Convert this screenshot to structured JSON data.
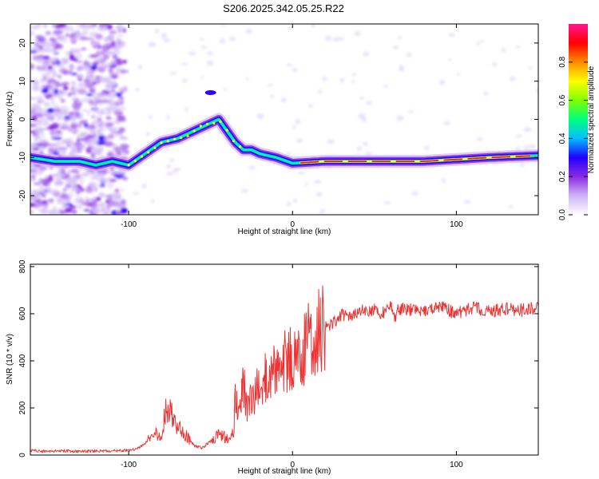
{
  "figure_title": "S206.2025.342.05.25.R22",
  "chart_data": [
    {
      "type": "heatmap",
      "title": "S206.2025.342.05.25.R22",
      "xlabel": "Height of straight line (km)",
      "ylabel": "Frequency (Hz)",
      "xlim": [
        -160,
        150
      ],
      "ylim": [
        -25,
        25
      ],
      "x_ticks": [
        -100,
        0,
        100
      ],
      "x_tick_labels": [
        "-100",
        "0",
        "100"
      ],
      "y_ticks": [
        -20,
        -10,
        0,
        10,
        20
      ],
      "y_tick_labels": [
        "-20",
        "-10",
        "0",
        "10",
        "20"
      ],
      "ridge": {
        "x": [
          -160,
          -145,
          -130,
          -120,
          -110,
          -100,
          -90,
          -80,
          -70,
          -60,
          -50,
          -45,
          -40,
          -35,
          -30,
          -25,
          -20,
          -10,
          0,
          20,
          50,
          80,
          100,
          120,
          150
        ],
        "y": [
          -10,
          -11,
          -11,
          -12,
          -11,
          -12,
          -9,
          -6,
          -5,
          -3,
          -1,
          0,
          -3,
          -6,
          -8,
          -8,
          -9,
          -10,
          -11.5,
          -11,
          -11,
          -11,
          -10.5,
          -10,
          -9.5
        ]
      },
      "colorbar": {
        "label": "Normalized spectral amplitude",
        "range": [
          0,
          1
        ],
        "ticks": [
          0,
          0.2,
          0.4,
          0.6,
          0.8
        ],
        "tick_labels": [
          "0.0",
          "0.2",
          "0.4",
          "0.6",
          "0.8"
        ],
        "colors": [
          "#ffffff",
          "#cdb4f5",
          "#8a2be2",
          "#2000ff",
          "#00bfff",
          "#00ff7f",
          "#7fff00",
          "#ffff00",
          "#ff8c00",
          "#ff0000",
          "#ff1493"
        ]
      }
    },
    {
      "type": "line",
      "xlabel": "Height of straight line (km)",
      "ylabel": "SNR (10 * v/v)",
      "xlim": [
        -160,
        150
      ],
      "ylim": [
        0,
        810
      ],
      "x_ticks": [
        -100,
        0,
        100
      ],
      "x_tick_labels": [
        "-100",
        "0",
        "100"
      ],
      "y_ticks": [
        0,
        200,
        400,
        600,
        800
      ],
      "y_tick_labels": [
        "0",
        "200",
        "400",
        "600",
        "800"
      ],
      "color": "#ee3333",
      "series": [
        {
          "name": "SNR",
          "x": [
            -160,
            -150,
            -140,
            -130,
            -120,
            -110,
            -100,
            -95,
            -90,
            -85,
            -80,
            -77,
            -75,
            -72,
            -70,
            -65,
            -60,
            -55,
            -50,
            -45,
            -40,
            -36,
            -35,
            -33,
            -30,
            -28,
            -25,
            -20,
            -15,
            -10,
            -8,
            -5,
            0,
            5,
            10,
            15,
            20,
            25,
            30,
            35,
            40,
            50,
            55,
            58,
            60,
            62,
            65,
            70,
            80,
            90,
            100,
            110,
            120,
            130,
            140,
            150
          ],
          "y": [
            20,
            15,
            18,
            15,
            17,
            18,
            20,
            25,
            50,
            80,
            100,
            190,
            200,
            150,
            120,
            80,
            40,
            30,
            60,
            90,
            70,
            100,
            230,
            180,
            300,
            210,
            250,
            300,
            330,
            380,
            300,
            400,
            420,
            400,
            500,
            520,
            550,
            560,
            600,
            580,
            610,
            620,
            600,
            630,
            650,
            580,
            620,
            620,
            610,
            630,
            600,
            625,
            610,
            620,
            615,
            630
          ]
        }
      ]
    }
  ]
}
